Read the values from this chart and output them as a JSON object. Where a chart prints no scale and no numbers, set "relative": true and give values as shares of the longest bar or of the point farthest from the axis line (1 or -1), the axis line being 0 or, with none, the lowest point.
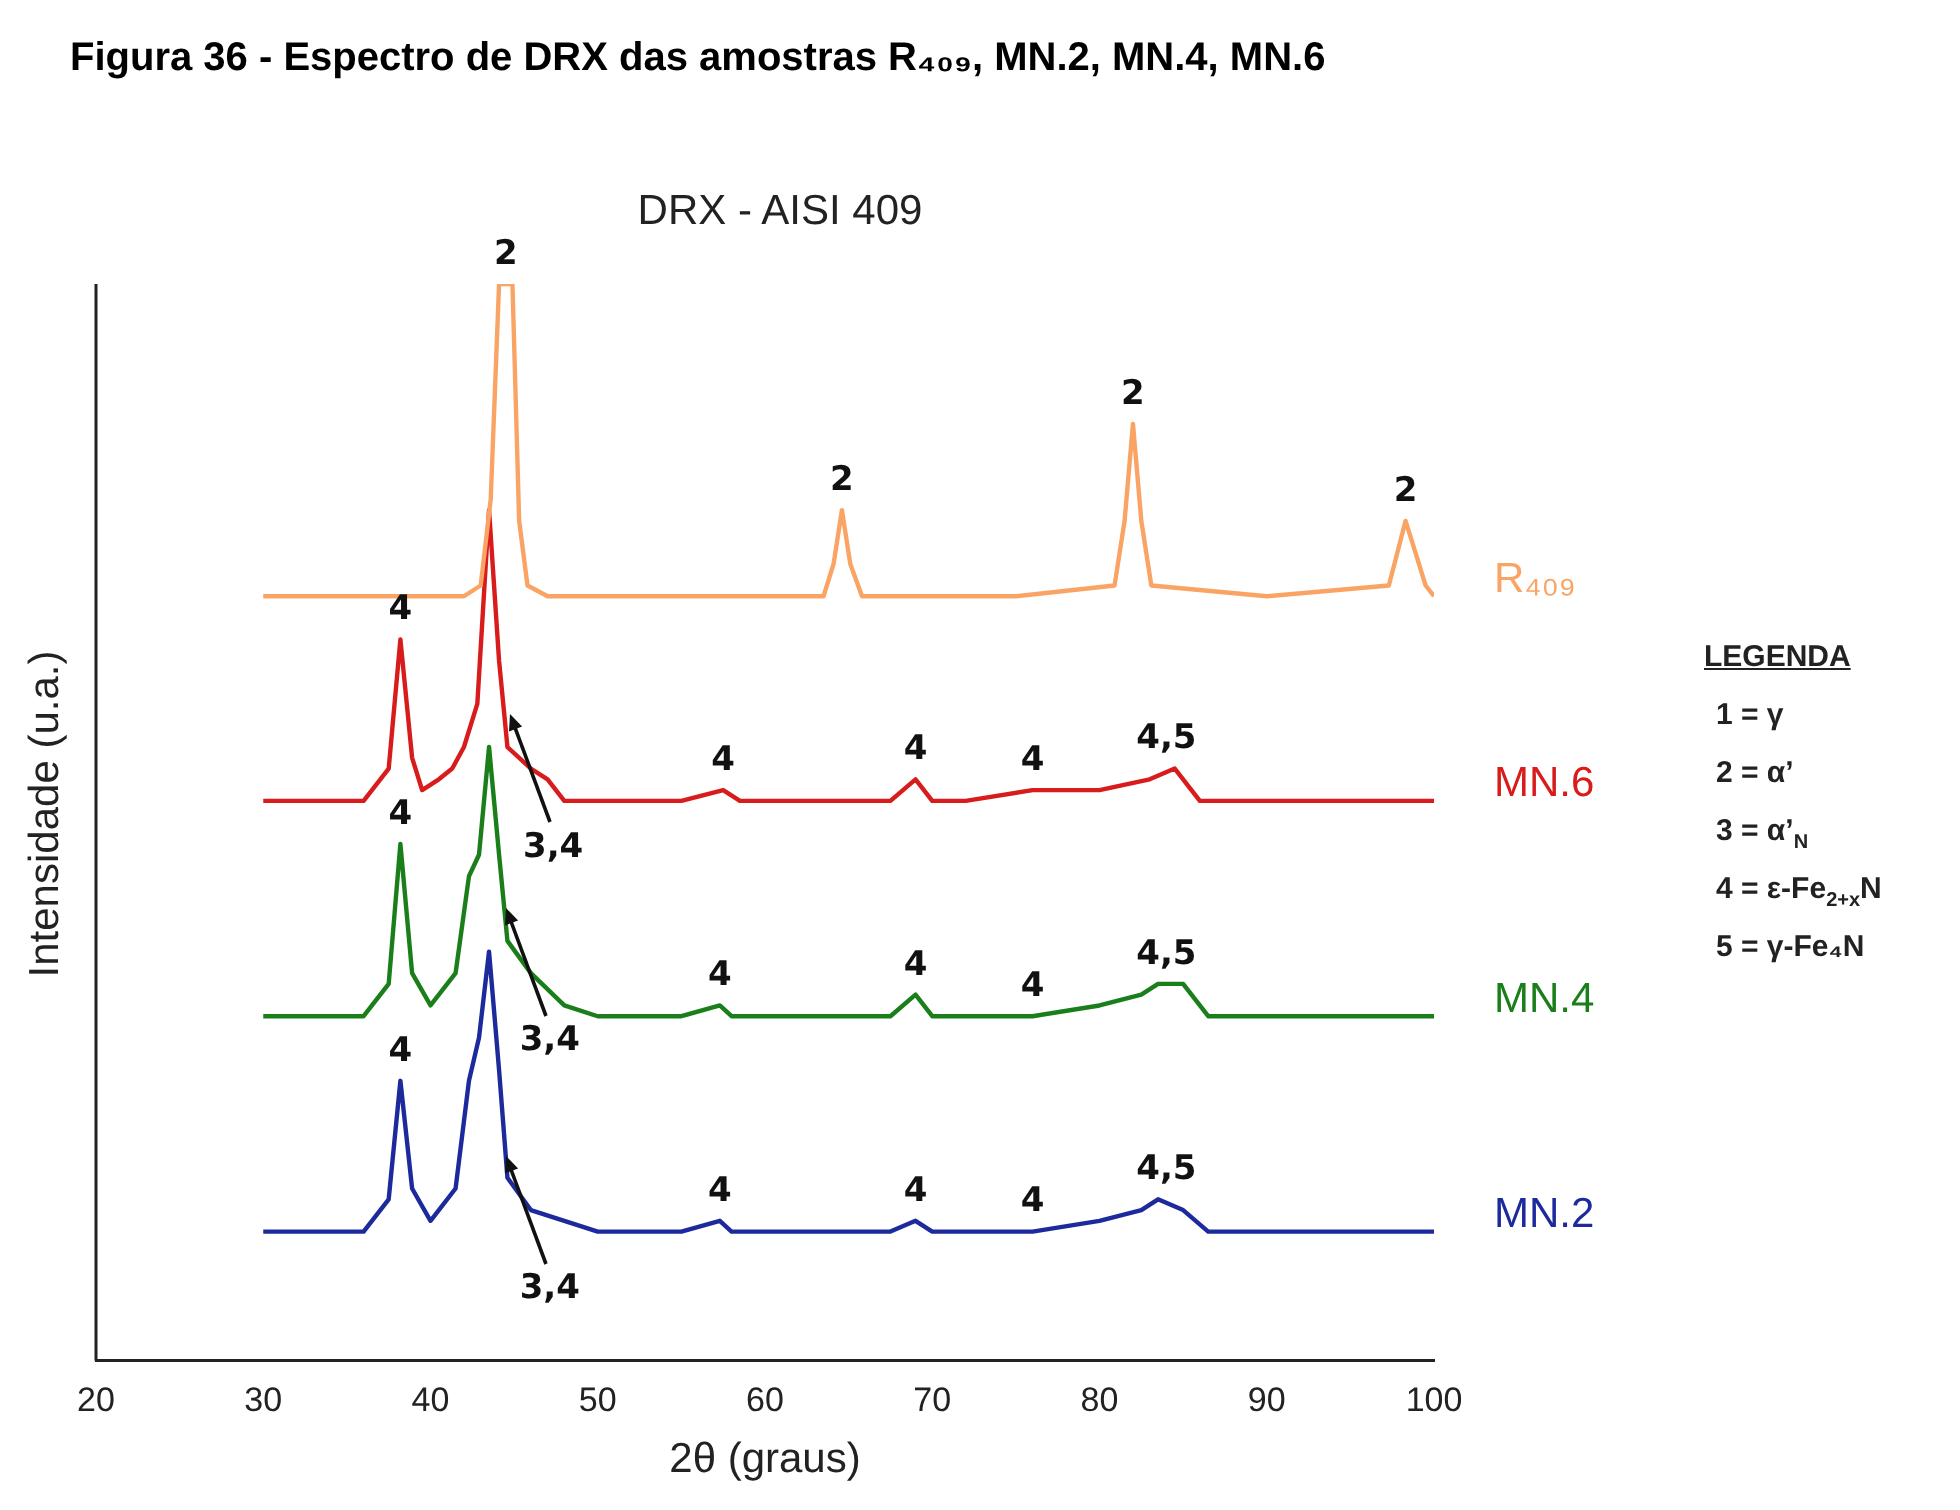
{
  "chart_data": {
    "type": "line",
    "title": "Figura 36 - Espectro de DRX das amostras R₄₀₉, MN.2, MN.4, MN.6",
    "subtitle": "DRX - AISI 409",
    "xlabel": "2θ (graus)",
    "ylabel": "Intensidade (u.a.)",
    "relative": true,
    "xlim": [
      20,
      100
    ],
    "xticks": [
      20,
      30,
      40,
      50,
      60,
      70,
      80,
      90,
      100
    ],
    "grid": false,
    "legend": false,
    "marker": "none",
    "line_style": "solid",
    "series": [
      {
        "name": "R₄₀₉",
        "color": "#f9a465",
        "x": [
          30,
          36,
          40,
          42,
          43,
          43.6,
          44.1,
          44.9,
          45.3,
          45.8,
          47,
          55,
          63.5,
          64.1,
          64.6,
          65.1,
          65.8,
          75,
          80.9,
          81.5,
          82,
          82.5,
          83.1,
          90,
          97.3,
          97.8,
          98.3,
          98.9,
          99.5,
          100
        ],
        "values": [
          0.71,
          0.71,
          0.71,
          0.71,
          0.72,
          0.8,
          1.0,
          1.0,
          0.78,
          0.72,
          0.71,
          0.71,
          0.71,
          0.74,
          0.79,
          0.74,
          0.71,
          0.71,
          0.72,
          0.78,
          0.87,
          0.78,
          0.72,
          0.71,
          0.72,
          0.75,
          0.78,
          0.75,
          0.72,
          0.71
        ]
      },
      {
        "name": "MN.6",
        "color": "#d81c1c",
        "x": [
          30,
          36,
          37.5,
          38.2,
          38.9,
          39.5,
          40.5,
          41.3,
          42,
          42.8,
          43.5,
          44.1,
          44.6,
          46,
          47,
          48,
          50,
          55,
          57.5,
          58.5,
          62,
          67.5,
          69,
          70,
          72,
          76,
          80,
          83,
          84.5,
          86,
          90,
          100
        ],
        "values": [
          0.52,
          0.52,
          0.55,
          0.67,
          0.56,
          0.53,
          0.54,
          0.55,
          0.57,
          0.61,
          0.79,
          0.65,
          0.57,
          0.55,
          0.54,
          0.52,
          0.52,
          0.52,
          0.53,
          0.52,
          0.52,
          0.52,
          0.54,
          0.52,
          0.52,
          0.53,
          0.53,
          0.54,
          0.55,
          0.52,
          0.52,
          0.52
        ]
      },
      {
        "name": "MN.4",
        "color": "#1a7f1a",
        "x": [
          30,
          36,
          37.5,
          38.2,
          38.9,
          40,
          41.5,
          42.3,
          42.9,
          43.5,
          44.1,
          44.6,
          46,
          48,
          50,
          55,
          57.3,
          58,
          67.5,
          69,
          70,
          76,
          80,
          82.5,
          83.5,
          85,
          86.5,
          90,
          100
        ],
        "values": [
          0.32,
          0.32,
          0.35,
          0.48,
          0.36,
          0.33,
          0.36,
          0.45,
          0.47,
          0.57,
          0.47,
          0.39,
          0.36,
          0.33,
          0.32,
          0.32,
          0.33,
          0.32,
          0.32,
          0.34,
          0.32,
          0.32,
          0.33,
          0.34,
          0.35,
          0.35,
          0.32,
          0.32,
          0.32
        ]
      },
      {
        "name": "MN.2",
        "color": "#1c2a9c",
        "x": [
          30,
          36,
          37.5,
          38.2,
          38.9,
          40,
          41.5,
          42.3,
          42.9,
          43.5,
          44.1,
          44.6,
          46,
          48,
          50,
          55,
          57.3,
          58,
          67.5,
          69,
          70,
          76,
          80,
          82.5,
          83.5,
          85,
          86.5,
          90,
          100
        ],
        "values": [
          0.12,
          0.12,
          0.15,
          0.26,
          0.16,
          0.13,
          0.16,
          0.26,
          0.3,
          0.38,
          0.27,
          0.17,
          0.14,
          0.13,
          0.12,
          0.12,
          0.13,
          0.12,
          0.12,
          0.13,
          0.12,
          0.12,
          0.13,
          0.14,
          0.15,
          0.14,
          0.12,
          0.12,
          0.12
        ]
      }
    ],
    "annotations": [
      {
        "text": "2",
        "x": 44.5,
        "y": 1.0
      },
      {
        "text": "2",
        "x": 64.6,
        "y": 0.79
      },
      {
        "text": "2",
        "x": 82,
        "y": 0.87
      },
      {
        "text": "2",
        "x": 98.3,
        "y": 0.78
      },
      {
        "text": "4",
        "x": 38.2,
        "y": 0.67
      },
      {
        "text": "3,4",
        "x": 44.7,
        "y": 0.6
      },
      {
        "text": "4",
        "x": 57.5,
        "y": 0.53
      },
      {
        "text": "4",
        "x": 69,
        "y": 0.54
      },
      {
        "text": "4",
        "x": 76,
        "y": 0.53
      },
      {
        "text": "4,5",
        "x": 84,
        "y": 0.55
      },
      {
        "text": "4",
        "x": 38.2,
        "y": 0.48
      },
      {
        "text": "3,4",
        "x": 44.5,
        "y": 0.42
      },
      {
        "text": "4",
        "x": 57.3,
        "y": 0.33
      },
      {
        "text": "4",
        "x": 69,
        "y": 0.34
      },
      {
        "text": "4",
        "x": 76,
        "y": 0.32
      },
      {
        "text": "4,5",
        "x": 84,
        "y": 0.35
      },
      {
        "text": "4",
        "x": 38.2,
        "y": 0.26
      },
      {
        "text": "3,4",
        "x": 44.5,
        "y": 0.19
      },
      {
        "text": "4",
        "x": 57.3,
        "y": 0.13
      },
      {
        "text": "4",
        "x": 69,
        "y": 0.13
      },
      {
        "text": "4",
        "x": 76,
        "y": 0.12
      },
      {
        "text": "4,5",
        "x": 84,
        "y": 0.15
      },
      "LEGENDA",
      "1 = γ",
      "2 = α’",
      "3 = α’$_{N}$",
      "4 = ε-Fe$_{2+x}$N",
      "5 = γ-Fe₄N"
    ]
  }
}
